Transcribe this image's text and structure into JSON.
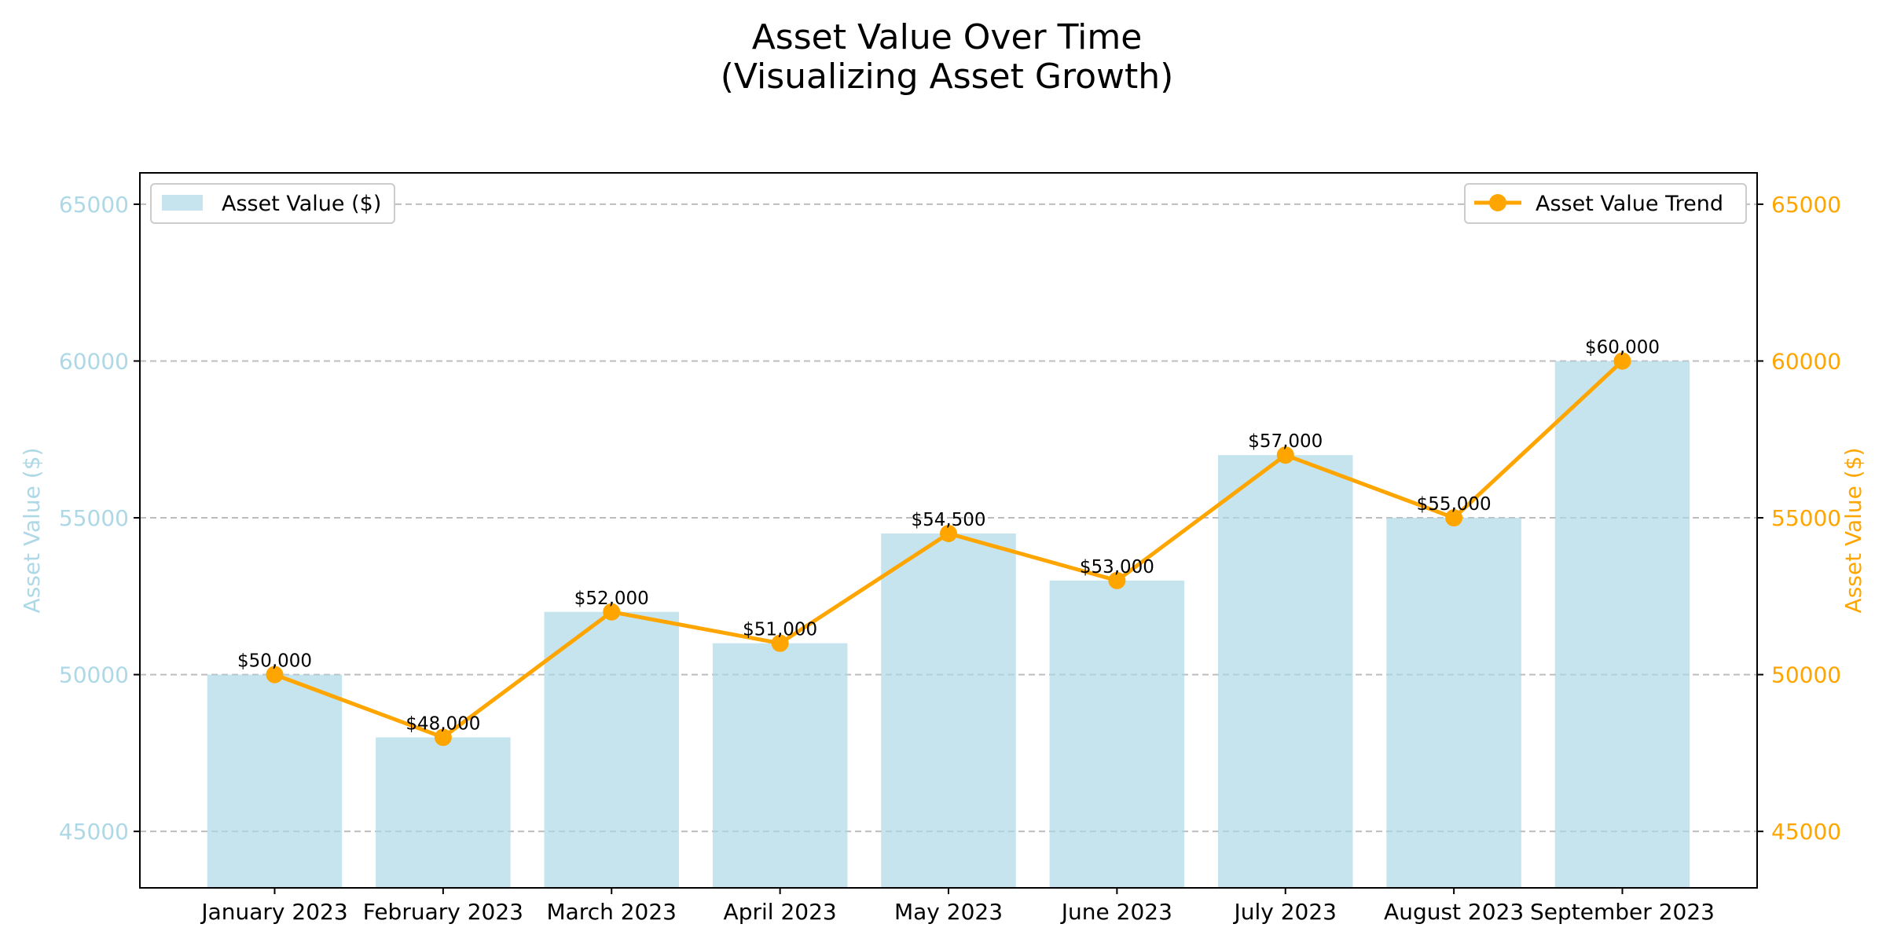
{
  "chart_data": {
    "type": "bar",
    "title_line1": "Asset Value Over Time",
    "title_line2": "(Visualizing Asset Growth)",
    "categories": [
      "January 2023",
      "February 2023",
      "March 2023",
      "April 2023",
      "May 2023",
      "June 2023",
      "July 2023",
      "August 2023",
      "September 2023"
    ],
    "bar_series": {
      "name": "Asset Value ($)",
      "values": [
        50000,
        48000,
        52000,
        51000,
        54500,
        53000,
        57000,
        55000,
        60000
      ],
      "color": "#add8e6"
    },
    "line_series": {
      "name": "Asset Value Trend",
      "values": [
        50000,
        48000,
        52000,
        51000,
        54500,
        53000,
        57000,
        55000,
        60000
      ],
      "color": "#ffa500"
    },
    "data_labels": [
      "$50,000",
      "$48,000",
      "$52,000",
      "$51,000",
      "$54,500",
      "$53,000",
      "$57,000",
      "$55,000",
      "$60,000"
    ],
    "ylabel_left": "Asset Value ($)",
    "ylabel_right": "Asset Value ($)",
    "ylim": [
      43200,
      66000
    ],
    "yticks": [
      45000,
      50000,
      55000,
      60000,
      65000
    ],
    "ytick_labels": [
      "45000",
      "50000",
      "55000",
      "60000",
      "65000"
    ],
    "grid": "horizontal dashed",
    "left_axis_color": "#add8e6",
    "right_axis_color": "#ffa500",
    "legend_bar_position": "upper-left",
    "legend_line_position": "upper-right"
  }
}
